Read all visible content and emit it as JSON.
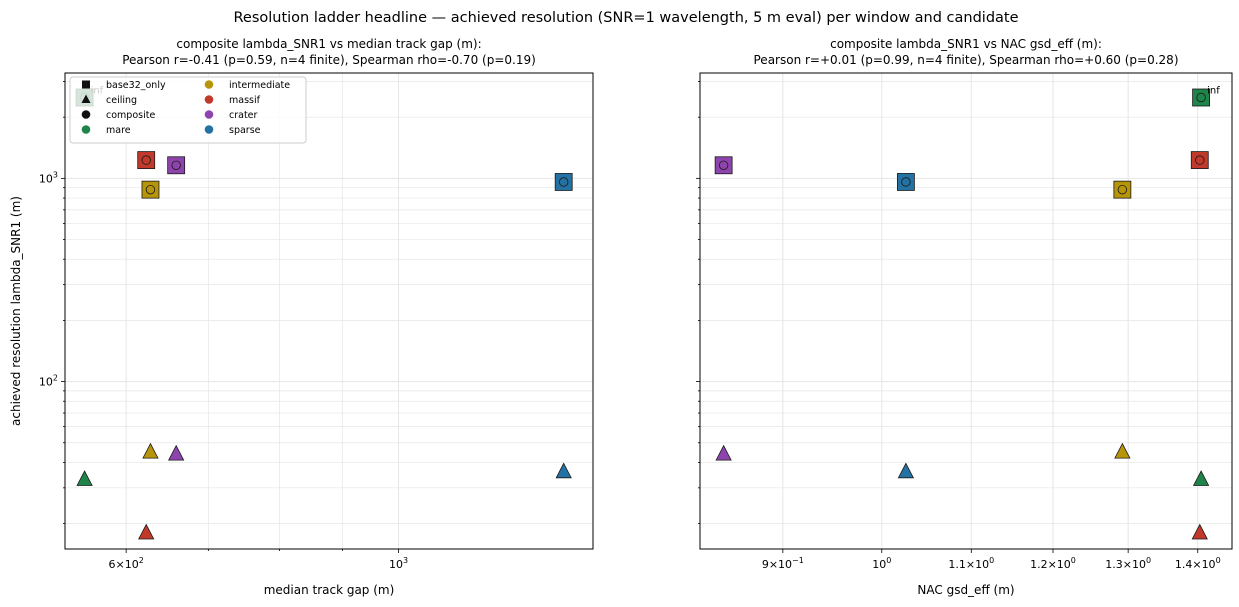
{
  "suptitle": "Resolution ladder headline — achieved resolution (SNR=1 wavelength, 5 m eval) per window and candidate",
  "colors": {
    "mare": "#1e8449",
    "intermediate": "#b7950b",
    "massif": "#c0392b",
    "crater": "#8e44ad",
    "sparse": "#2471a3",
    "edge": "#1a1a1a",
    "grid": "#e6e6e6"
  },
  "legend": {
    "markers": [
      {
        "label": "base32_only",
        "shape": "square"
      },
      {
        "label": "ceiling",
        "shape": "triangle"
      },
      {
        "label": "composite",
        "shape": "circle"
      }
    ],
    "windows": [
      "mare",
      "intermediate",
      "massif",
      "crater",
      "sparse"
    ]
  },
  "chart_data": [
    {
      "type": "scatter",
      "title_line1": "composite lambda_SNR1 vs median track gap (m):",
      "title_line2": "Pearson r=-0.41 (p=0.59, n=4 finite), Spearman rho=-0.70 (p=0.19)",
      "xlabel": "median track gap (m)",
      "ylabel": "achieved resolution lambda_SNR1 (m)",
      "xscale": "log",
      "yscale": "log",
      "xlim": [
        535,
        1440
      ],
      "ylim": [
        15,
        3300
      ],
      "xticks": [
        {
          "v": 600,
          "m": "6",
          "e": "2"
        },
        {
          "v": 1000,
          "m": "",
          "e": "3"
        }
      ],
      "xminor": [
        700,
        800,
        900
      ],
      "yticks": [
        {
          "v": 100,
          "e": "2"
        },
        {
          "v": 1000,
          "e": "3"
        }
      ],
      "grid": true,
      "legend_position": "upper left",
      "points": [
        {
          "window": "mare",
          "x": 555,
          "base32": 2500,
          "composite": 2500,
          "ceiling": 33,
          "inf_label": "inf"
        },
        {
          "window": "intermediate",
          "x": 628,
          "base32": 880,
          "composite": 880,
          "ceiling": 45
        },
        {
          "window": "massif",
          "x": 623,
          "base32": 1230,
          "composite": 1230,
          "ceiling": 18
        },
        {
          "window": "crater",
          "x": 659,
          "base32": 1160,
          "composite": 1160,
          "ceiling": 44
        },
        {
          "window": "sparse",
          "x": 1363,
          "base32": 960,
          "composite": 960,
          "ceiling": 36
        }
      ]
    },
    {
      "type": "scatter",
      "title_line1": "composite lambda_SNR1 vs NAC gsd_eff (m):",
      "title_line2": "Pearson r=+0.01 (p=0.99, n=4 finite), Spearman rho=+0.60 (p=0.28)",
      "xlabel": "NAC gsd_eff (m)",
      "ylabel": "",
      "xscale": "log",
      "yscale": "log",
      "xlim": [
        0.824,
        1.452
      ],
      "ylim": [
        15,
        3300
      ],
      "xticks": [
        {
          "v": 0.9,
          "m": "9",
          "e": "−1"
        },
        {
          "v": 1.0,
          "m": "",
          "e": "0"
        },
        {
          "v": 1.1,
          "m": "1.1",
          "e": "0"
        },
        {
          "v": 1.2,
          "m": "1.2",
          "e": "0"
        },
        {
          "v": 1.3,
          "m": "1.3",
          "e": "0"
        },
        {
          "v": 1.4,
          "m": "1.4",
          "e": "0"
        }
      ],
      "xminor": [],
      "yticks": [
        {
          "v": 100,
          "e": "2"
        },
        {
          "v": 1000,
          "e": "3"
        }
      ],
      "grid": true,
      "points": [
        {
          "window": "mare",
          "x": 1.405,
          "base32": 2500,
          "composite": 2500,
          "ceiling": 33,
          "inf_label": "inf"
        },
        {
          "window": "intermediate",
          "x": 1.292,
          "base32": 880,
          "composite": 880,
          "ceiling": 45
        },
        {
          "window": "massif",
          "x": 1.403,
          "base32": 1230,
          "composite": 1230,
          "ceiling": 18
        },
        {
          "window": "crater",
          "x": 0.845,
          "base32": 1160,
          "composite": 1160,
          "ceiling": 44
        },
        {
          "window": "sparse",
          "x": 1.026,
          "base32": 960,
          "composite": 960,
          "ceiling": 36
        }
      ]
    }
  ]
}
